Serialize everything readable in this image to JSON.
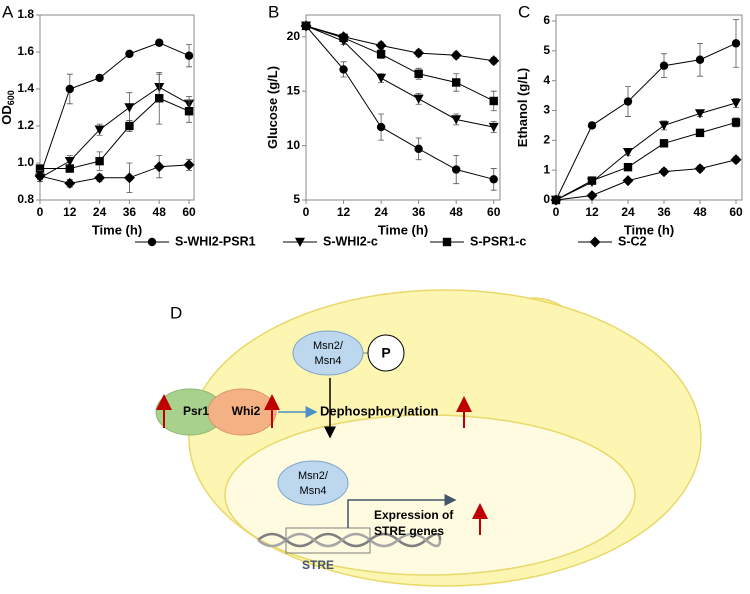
{
  "chart_data": [
    {
      "type": "line",
      "panel": "A",
      "ylabel": "OD",
      "ylabel_sub": "600",
      "xlabel": "Time (h)",
      "x": [
        0,
        12,
        24,
        36,
        48,
        60
      ],
      "xlim": [
        0,
        62
      ],
      "xticks": [
        0,
        12,
        24,
        36,
        48,
        60
      ],
      "ylim": [
        0.8,
        1.8
      ],
      "yticks": [
        0.8,
        {
          "value": 1,
          "label": "1.0"
        },
        1.2,
        1.4,
        1.6,
        1.8
      ],
      "series": [
        {
          "name": "S-WHI2-PSR1",
          "marker": "circle",
          "color": "#000000",
          "values": [
            0.93,
            1.4,
            1.46,
            1.59,
            1.65,
            1.58
          ],
          "errors": [
            0.02,
            0.08,
            0.01,
            0.01,
            0.01,
            0.06
          ]
        },
        {
          "name": "S-WHI2-c",
          "marker": "triangle",
          "color": "#000000",
          "values": [
            0.92,
            1.01,
            1.18,
            1.3,
            1.41,
            1.32
          ],
          "errors": [
            0.02,
            0.03,
            0.03,
            0.08,
            0.07,
            0.04
          ]
        },
        {
          "name": "S-PSR1-c",
          "marker": "square",
          "color": "#000000",
          "values": [
            0.97,
            0.97,
            1.01,
            1.2,
            1.35,
            1.28
          ],
          "errors": [
            0.02,
            0.02,
            0.05,
            0.03,
            0.14,
            0.06
          ]
        },
        {
          "name": "S-C2",
          "marker": "diamond",
          "color": "#000000",
          "values": [
            0.93,
            0.89,
            0.92,
            0.92,
            0.98,
            0.99
          ],
          "errors": [
            0.03,
            0.02,
            0.02,
            0.08,
            0.06,
            0.03
          ]
        }
      ]
    },
    {
      "type": "line",
      "panel": "B",
      "ylabel": "Glucose (g/L)",
      "xlabel": "Time (h)",
      "x": [
        0,
        12,
        24,
        36,
        48,
        60
      ],
      "xlim": [
        0,
        62
      ],
      "xticks": [
        0,
        12,
        24,
        36,
        48,
        60
      ],
      "ylim": [
        5,
        22
      ],
      "yticks": [
        5,
        10,
        15,
        20
      ],
      "series": [
        {
          "marker": "circle",
          "color": "#000000",
          "values": [
            21,
            17,
            11.7,
            9.7,
            7.8,
            6.9
          ],
          "errors": [
            0.2,
            0.7,
            1.2,
            1.0,
            1.3,
            1.0
          ]
        },
        {
          "marker": "triangle",
          "color": "#000000",
          "values": [
            21,
            19.6,
            16.2,
            14.3,
            12.4,
            11.7
          ],
          "errors": [
            0.2,
            0.3,
            0.4,
            0.5,
            0.5,
            0.5
          ]
        },
        {
          "marker": "square",
          "color": "#000000",
          "values": [
            21,
            19.9,
            18.4,
            16.6,
            15.8,
            14.1
          ],
          "errors": [
            0.2,
            0.3,
            0.4,
            0.5,
            0.8,
            0.9
          ]
        },
        {
          "marker": "diamond",
          "color": "#000000",
          "values": [
            21,
            20,
            19.2,
            18.5,
            18.3,
            17.8
          ],
          "errors": [
            0.2,
            0.2,
            0.3,
            0.3,
            0.3,
            0.3
          ]
        }
      ]
    },
    {
      "type": "line",
      "panel": "C",
      "ylabel": "Ethanol (g/L)",
      "xlabel": "Time (h)",
      "x": [
        0,
        12,
        24,
        36,
        48,
        60
      ],
      "xlim": [
        0,
        62
      ],
      "xticks": [
        0,
        12,
        24,
        36,
        48,
        60
      ],
      "ylim": [
        0,
        6.2
      ],
      "yticks": [
        0,
        1,
        2,
        3,
        4,
        5,
        6
      ],
      "series": [
        {
          "marker": "circle",
          "color": "#000000",
          "values": [
            0,
            2.5,
            3.3,
            4.5,
            4.7,
            5.25
          ],
          "errors": [
            0.05,
            0.1,
            0.5,
            0.4,
            0.55,
            0.8
          ]
        },
        {
          "marker": "triangle",
          "color": "#000000",
          "values": [
            0,
            0.6,
            1.6,
            2.5,
            2.9,
            3.25
          ],
          "errors": [
            0.05,
            0.05,
            0.1,
            0.15,
            0.1,
            0.15
          ]
        },
        {
          "marker": "square",
          "color": "#000000",
          "values": [
            0,
            0.65,
            1.1,
            1.9,
            2.25,
            2.6
          ],
          "errors": [
            0.05,
            0.05,
            0.1,
            0.1,
            0.1,
            0.15
          ]
        },
        {
          "marker": "diamond",
          "color": "#000000",
          "values": [
            0,
            0.15,
            0.65,
            0.95,
            1.05,
            1.35
          ],
          "errors": [
            0.05,
            0.05,
            0.05,
            0.1,
            0.1,
            0.1
          ]
        }
      ]
    }
  ],
  "diagram": {
    "label": "D",
    "msn_top": [
      "Msn2/",
      "Msn4"
    ],
    "phosphate": "P",
    "psr1": "Psr1",
    "whi2": "Whi2",
    "dephosphorylation": "Dephosphorylation",
    "msn_nucleus": [
      "Msn2/",
      "Msn4"
    ],
    "expression": [
      "Expression of",
      "STRE genes"
    ],
    "stre": "STRE"
  }
}
